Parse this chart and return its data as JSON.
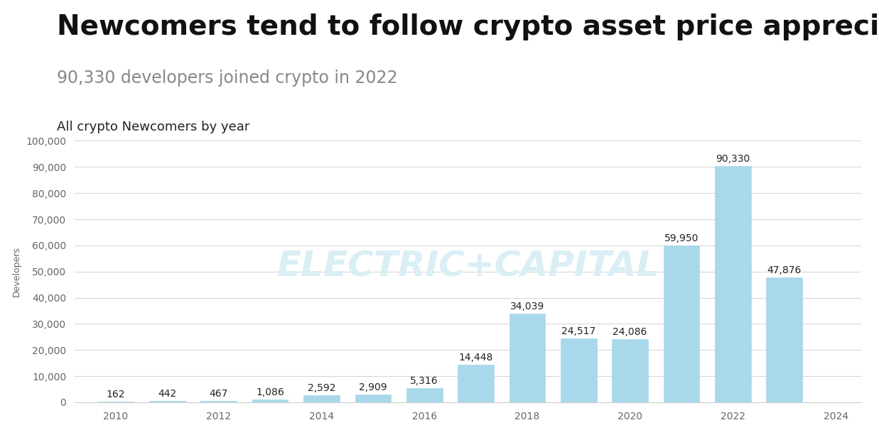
{
  "title": "Newcomers tend to follow crypto asset price appreciation",
  "subtitle": "90,330 developers joined crypto in 2022",
  "chart_label": "All crypto Newcomers by year",
  "ylabel": "Developers",
  "years": [
    2010,
    2011,
    2012,
    2013,
    2014,
    2015,
    2016,
    2017,
    2018,
    2019,
    2020,
    2021,
    2022,
    2023
  ],
  "values": [
    162,
    442,
    467,
    1086,
    2592,
    2909,
    5316,
    14448,
    34039,
    24517,
    24086,
    59950,
    90330,
    47876
  ],
  "bar_color": "#a8d8ea",
  "background_color": "#ffffff",
  "grid_color": "#cccccc",
  "watermark_text": "ELECTRIC+CAPITAL",
  "watermark_color": "#daeef5",
  "title_fontsize": 28,
  "subtitle_fontsize": 17,
  "subtitle_color": "#888888",
  "chart_label_fontsize": 13,
  "ylabel_fontsize": 9,
  "tick_fontsize": 10,
  "annotation_fontsize": 10,
  "ylim": [
    0,
    100000
  ],
  "yticks": [
    0,
    10000,
    20000,
    30000,
    40000,
    50000,
    60000,
    70000,
    80000,
    90000,
    100000
  ],
  "xlim": [
    2009.2,
    2024.5
  ],
  "bar_width": 0.7
}
